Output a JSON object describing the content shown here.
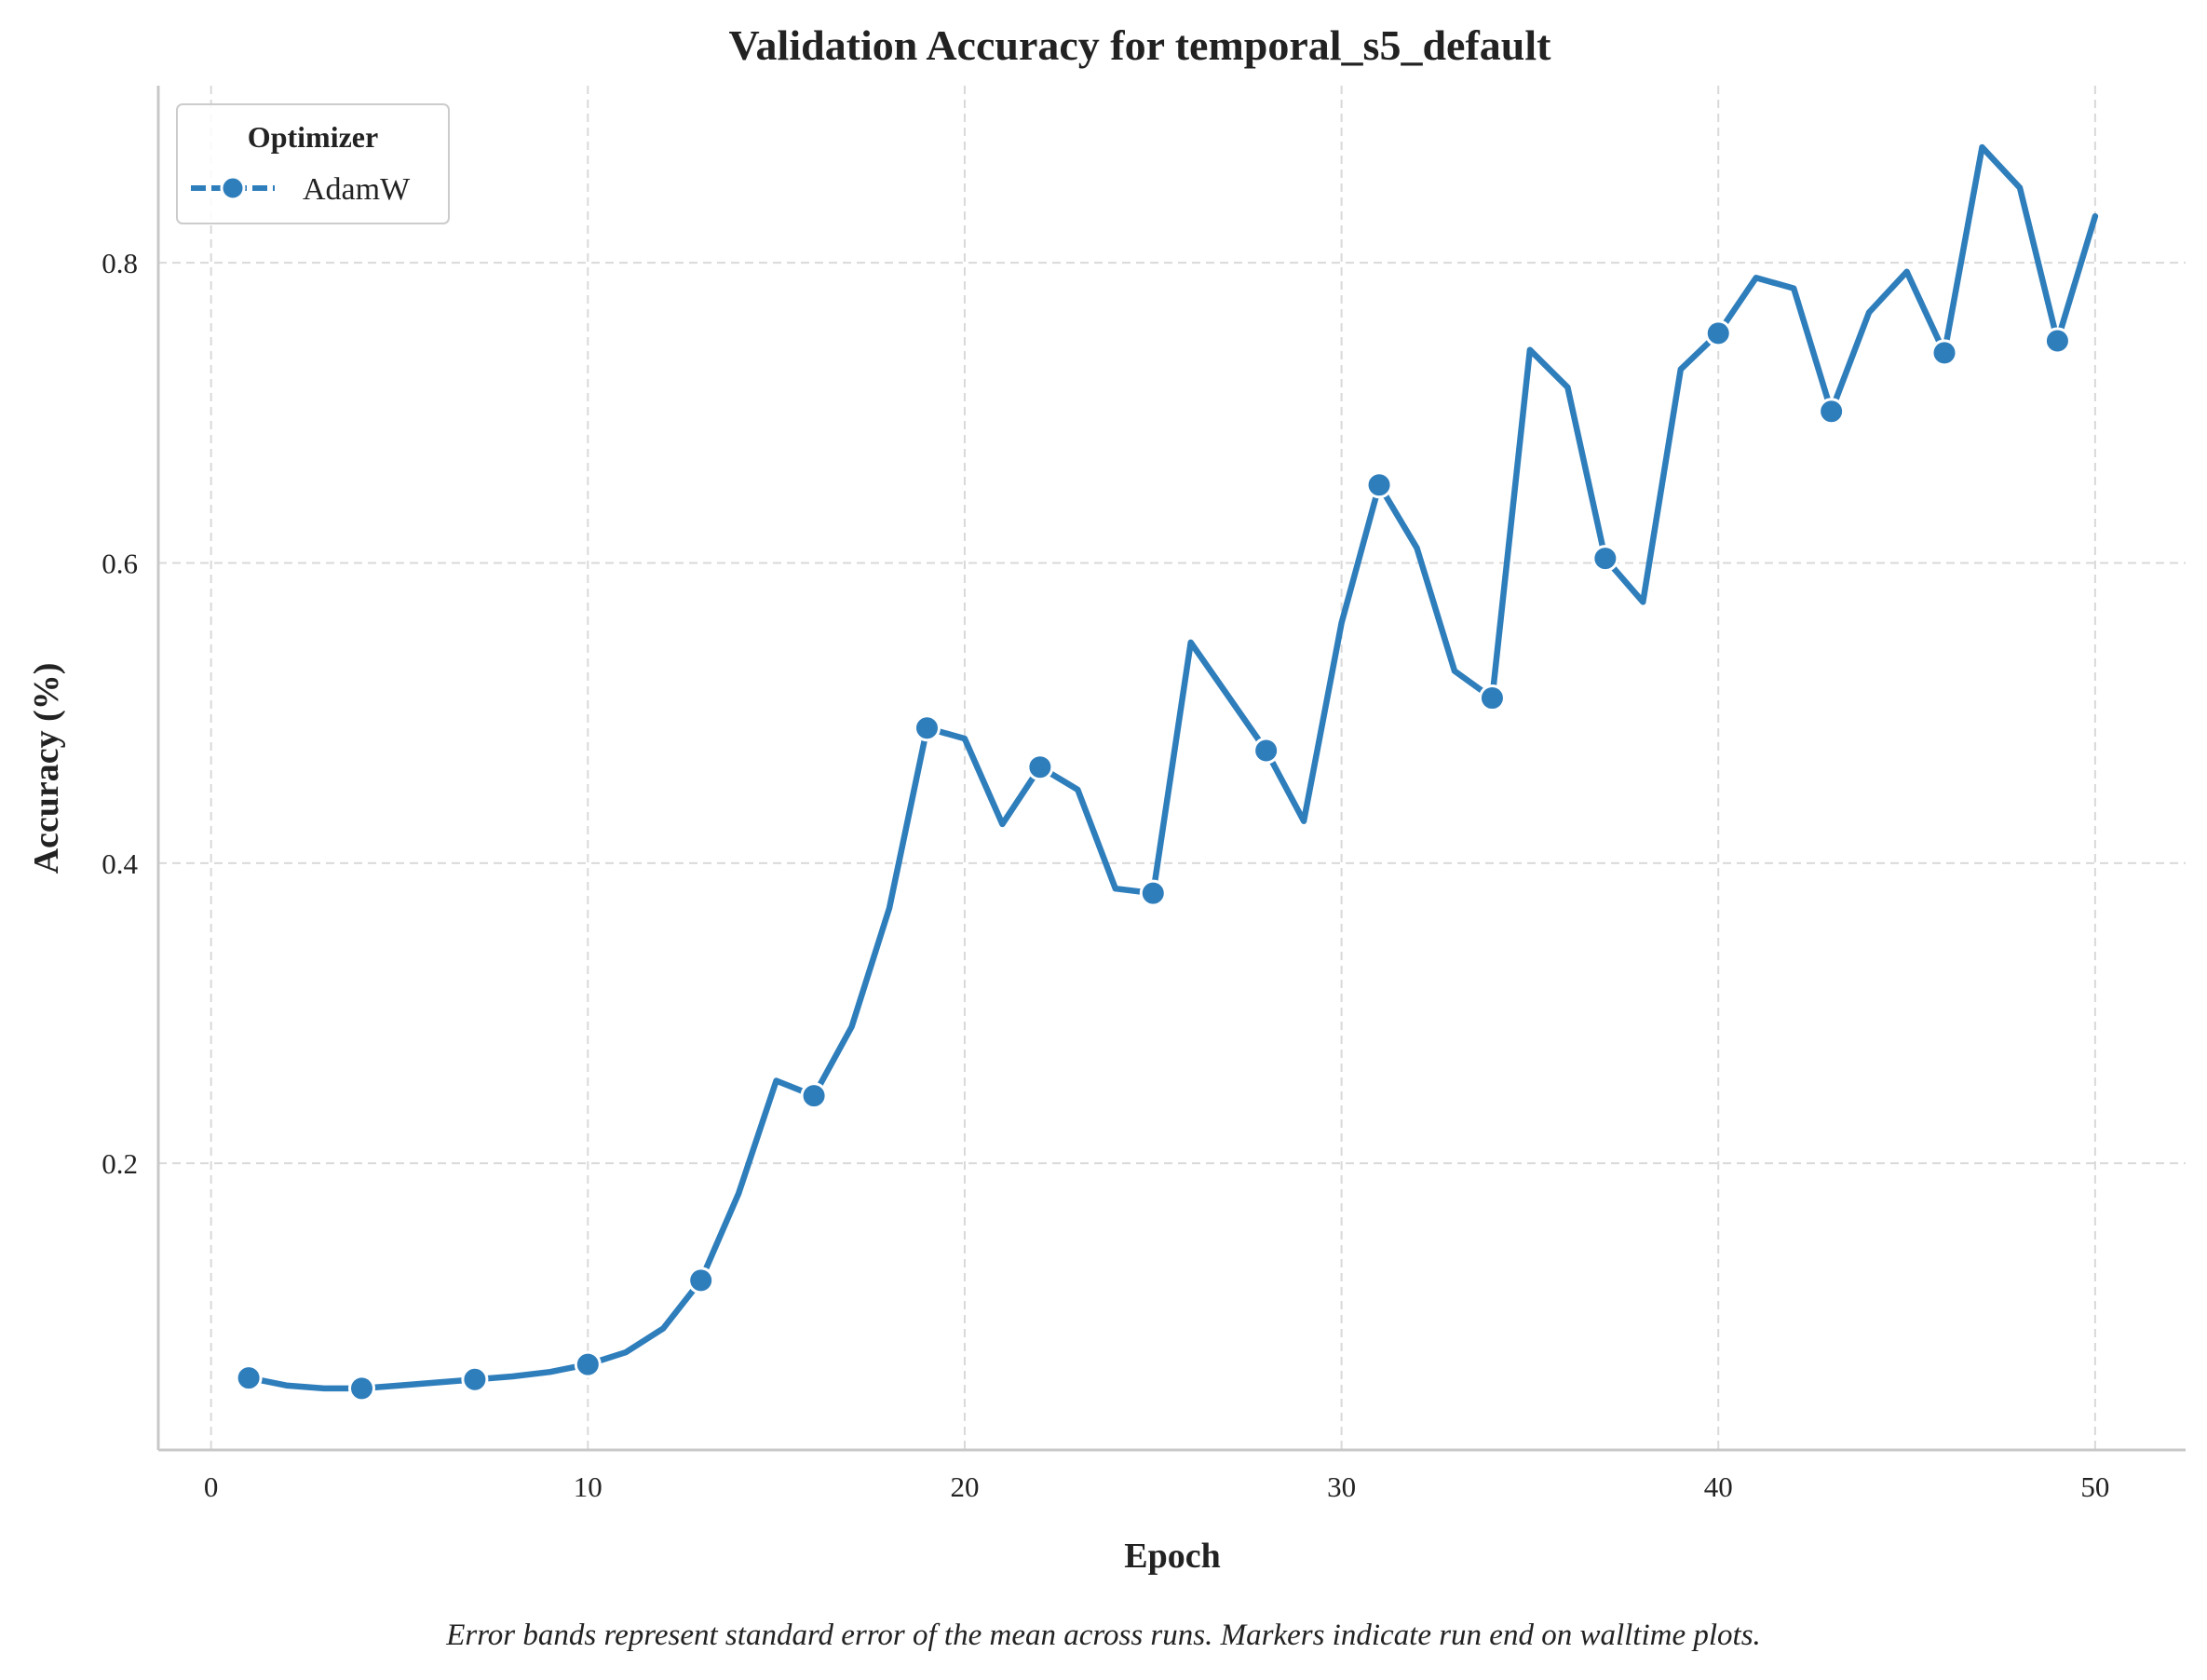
{
  "chart_data": {
    "type": "line",
    "title": "Validation Accuracy for temporal_s5_default",
    "xlabel": "Epoch",
    "ylabel": "Accuracy (%)",
    "xlim": [
      -1.4,
      52.4
    ],
    "ylim": [
      0.009,
      0.918
    ],
    "xticks": [
      0,
      10,
      20,
      30,
      40,
      50
    ],
    "yticks": [
      0.2,
      0.4,
      0.6,
      0.8
    ],
    "xtick_labels": [
      "0",
      "10",
      "20",
      "30",
      "40",
      "50"
    ],
    "ytick_labels": [
      "0.2",
      "0.4",
      "0.6",
      "0.8"
    ],
    "grid": true,
    "legend": {
      "title": "Optimizer",
      "placement": "top-left"
    },
    "series": [
      {
        "name": "AdamW",
        "color": "#2f7ebc",
        "x": [
          1,
          2,
          3,
          4,
          5,
          6,
          7,
          8,
          9,
          10,
          11,
          12,
          13,
          14,
          15,
          16,
          17,
          18,
          19,
          20,
          21,
          22,
          23,
          24,
          25,
          26,
          27,
          28,
          29,
          30,
          31,
          32,
          33,
          34,
          35,
          36,
          37,
          38,
          39,
          40,
          41,
          42,
          43,
          44,
          45,
          46,
          47,
          48,
          49,
          50
        ],
        "values": [
          0.057,
          0.052,
          0.05,
          0.05,
          0.052,
          0.054,
          0.056,
          0.058,
          0.061,
          0.066,
          0.074,
          0.09,
          0.122,
          0.18,
          0.255,
          0.245,
          0.291,
          0.37,
          0.49,
          0.483,
          0.426,
          0.464,
          0.449,
          0.383,
          0.38,
          0.547,
          0.511,
          0.475,
          0.428,
          0.56,
          0.652,
          0.61,
          0.528,
          0.51,
          0.742,
          0.717,
          0.603,
          0.574,
          0.729,
          0.753,
          0.79,
          0.783,
          0.701,
          0.767,
          0.794,
          0.74,
          0.877,
          0.85,
          0.748,
          0.831
        ],
        "marker_x": [
          1,
          4,
          7,
          10,
          13,
          16,
          19,
          22,
          25,
          28,
          31,
          34,
          37,
          40,
          43,
          46,
          49
        ]
      }
    ],
    "caption": "Error bands represent standard error of the mean across runs. Markers indicate run end on walltime plots."
  }
}
